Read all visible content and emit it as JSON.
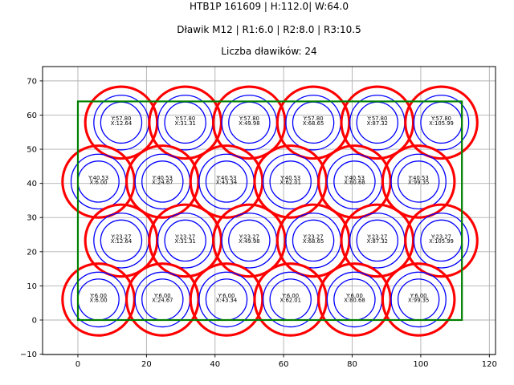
{
  "chart_data": {
    "type": "scatter",
    "title": "HTB1P 161609 | H:112.0| W:64.0",
    "subtitle": "Dławik M12 | R1:6.0 | R2:8.0 | R3:10.5",
    "subtitle2": "Liczba dławików: 24",
    "gland_count": 24,
    "xlim": [
      -10.3,
      121.8
    ],
    "ylim": [
      -10.1,
      74.2
    ],
    "xticks": [
      0,
      20,
      40,
      60,
      80,
      100,
      120
    ],
    "xtick_labels": [
      "0",
      "20",
      "40",
      "60",
      "80",
      "100",
      "120"
    ],
    "yticks": [
      -10,
      0,
      10,
      20,
      30,
      40,
      50,
      60,
      70
    ],
    "ytick_labels": [
      "−10",
      "0",
      "10",
      "20",
      "30",
      "40",
      "50",
      "60",
      "70"
    ],
    "grid": true,
    "radii": {
      "R1": 6.0,
      "R2": 8.0,
      "R3": 10.5
    },
    "boundary_rect": {
      "x0": 0,
      "y0": 0,
      "width": 112,
      "height": 64
    },
    "colors": {
      "inner_circles": "#0000ff",
      "outer_circle": "#ff0000",
      "boundary": "#008000",
      "grid": "#b0b0b0",
      "text": "#000000"
    },
    "points": [
      {
        "x": 12.64,
        "y": 57.8,
        "ly": "Y:57.80",
        "lx": "X:12.64"
      },
      {
        "x": 31.31,
        "y": 57.8,
        "ly": "Y:57.80",
        "lx": "X:31.31"
      },
      {
        "x": 49.98,
        "y": 57.8,
        "ly": "Y:57.80",
        "lx": "X:49.98"
      },
      {
        "x": 68.65,
        "y": 57.8,
        "ly": "Y:57.80",
        "lx": "X:68.65"
      },
      {
        "x": 87.32,
        "y": 57.8,
        "ly": "Y:57.80",
        "lx": "X:87.32"
      },
      {
        "x": 105.99,
        "y": 57.8,
        "ly": "Y:57.80",
        "lx": "X:105.99"
      },
      {
        "x": 6.0,
        "y": 40.53,
        "ly": "Y:40.53",
        "lx": "X:6.00"
      },
      {
        "x": 24.67,
        "y": 40.53,
        "ly": "Y:40.53",
        "lx": "X:24.67"
      },
      {
        "x": 43.34,
        "y": 40.53,
        "ly": "Y:40.53",
        "lx": "X:43.34"
      },
      {
        "x": 62.01,
        "y": 40.53,
        "ly": "Y:40.53",
        "lx": "X:62.01"
      },
      {
        "x": 80.68,
        "y": 40.53,
        "ly": "Y:40.53",
        "lx": "X:80.68"
      },
      {
        "x": 99.35,
        "y": 40.53,
        "ly": "Y:40.53",
        "lx": "X:99.35"
      },
      {
        "x": 12.64,
        "y": 23.27,
        "ly": "Y:23.27",
        "lx": "X:12.64"
      },
      {
        "x": 31.31,
        "y": 23.27,
        "ly": "Y:23.27",
        "lx": "X:31.31"
      },
      {
        "x": 49.98,
        "y": 23.27,
        "ly": "Y:23.27",
        "lx": "X:49.98"
      },
      {
        "x": 68.65,
        "y": 23.27,
        "ly": "Y:23.27",
        "lx": "X:68.65"
      },
      {
        "x": 87.32,
        "y": 23.27,
        "ly": "Y:23.27",
        "lx": "X:87.32"
      },
      {
        "x": 105.99,
        "y": 23.27,
        "ly": "Y:23.27",
        "lx": "X:105.99"
      },
      {
        "x": 6.0,
        "y": 6.0,
        "ly": "Y:6.00",
        "lx": "X:6.00"
      },
      {
        "x": 24.67,
        "y": 6.0,
        "ly": "Y:6.00",
        "lx": "X:24.67"
      },
      {
        "x": 43.34,
        "y": 6.0,
        "ly": "Y:6.00",
        "lx": "X:43.34"
      },
      {
        "x": 62.01,
        "y": 6.0,
        "ly": "Y:6.00",
        "lx": "X:62.01"
      },
      {
        "x": 80.68,
        "y": 6.0,
        "ly": "Y:6.00",
        "lx": "X:80.68"
      },
      {
        "x": 99.35,
        "y": 6.0,
        "ly": "Y:6.00",
        "lx": "X:99.35"
      }
    ]
  }
}
